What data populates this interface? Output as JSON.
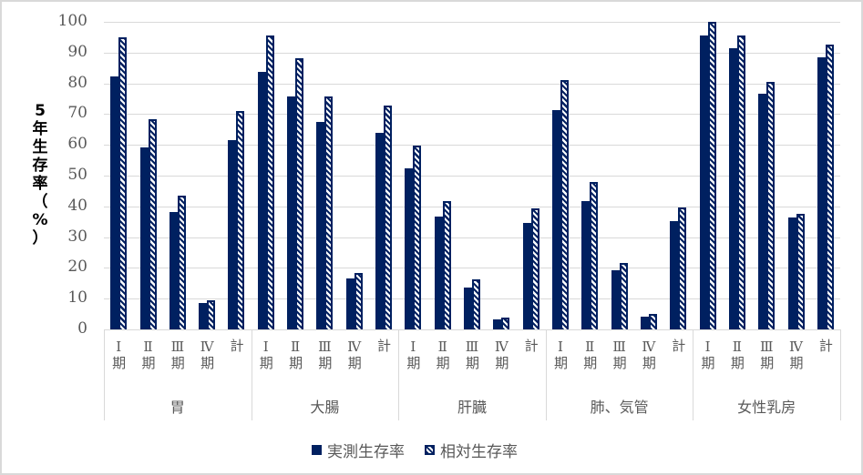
{
  "chart_data": {
    "type": "bar",
    "title": "",
    "ylabel": "5年生存率（%）",
    "xlabel": "",
    "ylim": [
      0,
      100
    ],
    "yticks": [
      0,
      10,
      20,
      30,
      40,
      50,
      60,
      70,
      80,
      90,
      100
    ],
    "grid": true,
    "legend_position": "bottom",
    "groups": [
      "胃",
      "大腸",
      "肝臓",
      "肺、気管",
      "女性乳房"
    ],
    "stage_labels": [
      "Ⅰ期",
      "Ⅱ期",
      "Ⅲ期",
      "Ⅳ期",
      "計"
    ],
    "categories": [
      "胃 Ⅰ期",
      "胃 Ⅱ期",
      "胃 Ⅲ期",
      "胃 Ⅳ期",
      "胃 計",
      "大腸 Ⅰ期",
      "大腸 Ⅱ期",
      "大腸 Ⅲ期",
      "大腸 Ⅳ期",
      "大腸 計",
      "肝臓 Ⅰ期",
      "肝臓 Ⅱ期",
      "肝臓 Ⅲ期",
      "肝臓 Ⅳ期",
      "肝臓 計",
      "肺、気管 Ⅰ期",
      "肺、気管 Ⅱ期",
      "肺、気管 Ⅲ期",
      "肺、気管 Ⅳ期",
      "肺、気管 計",
      "女性乳房 Ⅰ期",
      "女性乳房 Ⅱ期",
      "女性乳房 Ⅲ期",
      "女性乳房 Ⅳ期",
      "女性乳房 計"
    ],
    "series": [
      {
        "name": "実測生存率",
        "style": "solid",
        "color": "#002060",
        "values": [
          82.2,
          59.3,
          38.3,
          8.5,
          61.7,
          83.7,
          75.8,
          67.4,
          16.5,
          63.9,
          52.4,
          36.6,
          13.7,
          3.2,
          34.5,
          71.3,
          41.7,
          19.2,
          4.3,
          35.2,
          95.6,
          91.4,
          76.7,
          36.4,
          88.5
        ]
      },
      {
        "name": "相対生存率",
        "style": "hatched",
        "color": "#002060",
        "values": [
          95.0,
          68.4,
          43.6,
          9.6,
          71.1,
          95.5,
          88.3,
          75.7,
          18.5,
          72.9,
          59.7,
          41.6,
          16.2,
          4.0,
          39.5,
          81.2,
          47.8,
          21.7,
          4.9,
          39.7,
          100.0,
          95.5,
          80.6,
          37.7,
          92.5
        ]
      }
    ]
  },
  "ylabel_chars": [
    "5",
    "年",
    "生",
    "存",
    "率",
    "（",
    "%",
    "）"
  ],
  "legend": [
    {
      "label": "実測生存率",
      "icon": "solid-square"
    },
    {
      "label": "相対生存率",
      "icon": "hatched-square"
    }
  ],
  "colors": {
    "bar": "#002060",
    "grid": "#d9d9d9",
    "text": "#595959"
  }
}
